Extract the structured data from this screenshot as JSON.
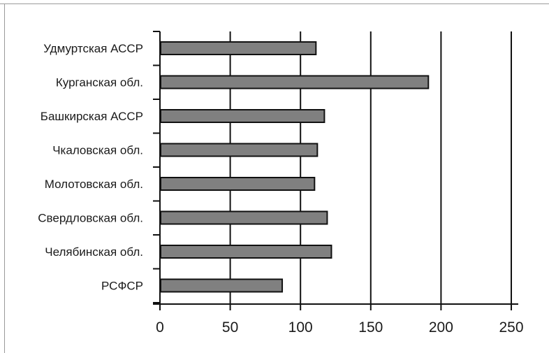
{
  "chart_data": {
    "type": "bar",
    "orientation": "horizontal",
    "categories": [
      "Удмуртская АССР",
      "Курганская обл.",
      "Башкирская АССР",
      "Чкаловская обл.",
      "Молотовская обл.",
      "Свердловская обл.",
      "Челябинская обл.",
      "РСФСР"
    ],
    "values": [
      111,
      191,
      117,
      112,
      110,
      119,
      122,
      87
    ],
    "xlim": [
      0,
      250
    ],
    "xticks": [
      0,
      50,
      100,
      150,
      200,
      250
    ],
    "xtick_labels": [
      "0",
      "50",
      "100",
      "150",
      "200",
      "250"
    ],
    "title": "",
    "xlabel": "",
    "ylabel": "",
    "grid": "vertical",
    "legend": "none",
    "colors": {
      "bar_fill": "#808080",
      "bar_stroke": "#111111",
      "gridline": "#111111",
      "frame": "#9a9a9a",
      "text": "#1a1a1a"
    }
  }
}
